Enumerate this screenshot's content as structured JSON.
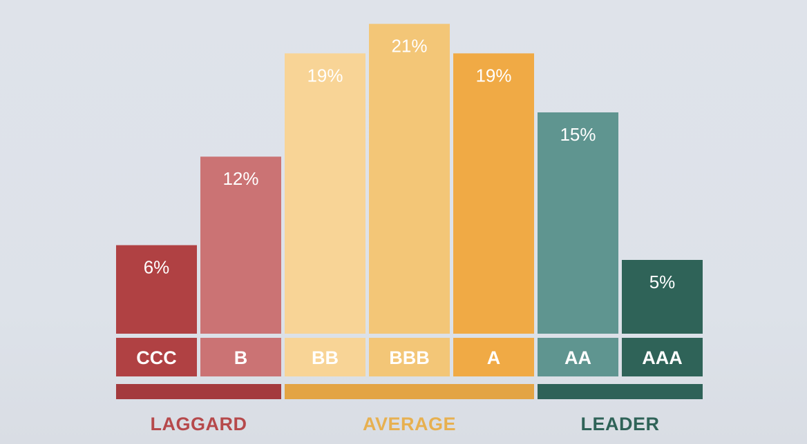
{
  "chart_data": {
    "type": "bar",
    "categories": [
      "CCC",
      "B",
      "BB",
      "BBB",
      "A",
      "AA",
      "AAA"
    ],
    "values": [
      6,
      12,
      19,
      21,
      19,
      15,
      5
    ],
    "value_labels": [
      "6%",
      "12%",
      "19%",
      "21%",
      "19%",
      "15%",
      "5%"
    ],
    "bar_colors": [
      "#b04143",
      "#cb7374",
      "#f8d496",
      "#f3c677",
      "#f0aa45",
      "#5f9590",
      "#2f6358"
    ],
    "ylim": [
      0,
      21
    ],
    "grid": false,
    "groups": [
      {
        "label": "LAGGARD",
        "from": 0,
        "to": 1,
        "color": "#a43a3d",
        "text_color": "#b6494b"
      },
      {
        "label": "AVERAGE",
        "from": 2,
        "to": 4,
        "color": "#e3a444",
        "text_color": "#e7b050"
      },
      {
        "label": "LEADER",
        "from": 5,
        "to": 6,
        "color": "#2e6258",
        "text_color": "#2f6358"
      }
    ]
  }
}
